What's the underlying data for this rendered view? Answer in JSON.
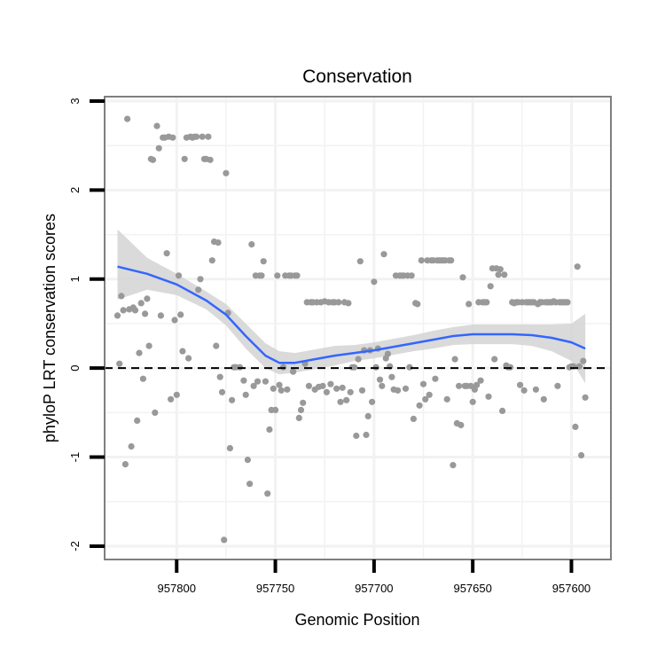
{
  "chart_data": {
    "type": "scatter",
    "title": "Conservation",
    "xlabel": "Genomic Position",
    "ylabel": "phyloP LRT conservation scores",
    "x_reversed": true,
    "xlim": [
      957836.5,
      957580.0
    ],
    "ylim": [
      -2.15,
      3.05
    ],
    "x_ticks": [
      957800,
      957750,
      957700,
      957650,
      957600
    ],
    "x_tick_labels": [
      "957800",
      "957750",
      "957700",
      "957650",
      "957600"
    ],
    "y_ticks": [
      -2,
      -1,
      0,
      1,
      2,
      3
    ],
    "y_tick_labels": [
      "-2",
      "-1",
      "0",
      "1",
      "2",
      "3"
    ],
    "grid": true,
    "reference_line": {
      "y": 0,
      "style": "dashed",
      "color": "#000000"
    },
    "colors": {
      "points": "#999999",
      "smooth": "#3366ff",
      "band": "#d3d3d3",
      "grid": "#f2f2f2",
      "frame": "#7f7f7f"
    },
    "series": [
      {
        "name": "scores",
        "kind": "points",
        "points": [
          [
            957830,
            0.59
          ],
          [
            957829,
            0.05
          ],
          [
            957828,
            0.81
          ],
          [
            957827,
            0.65
          ],
          [
            957826,
            -1.08
          ],
          [
            957825,
            2.8
          ],
          [
            957824,
            0.66
          ],
          [
            957823,
            -0.88
          ],
          [
            957822,
            0.68
          ],
          [
            957821,
            0.65
          ],
          [
            957820,
            -0.59
          ],
          [
            957819,
            0.17
          ],
          [
            957818,
            0.73
          ],
          [
            957817,
            -0.12
          ],
          [
            957816,
            0.61
          ],
          [
            957815,
            0.78
          ],
          [
            957814,
            0.25
          ],
          [
            957813,
            2.35
          ],
          [
            957812,
            2.34
          ],
          [
            957811,
            -0.5
          ],
          [
            957810,
            2.72
          ],
          [
            957809,
            2.47
          ],
          [
            957808,
            0.59
          ],
          [
            957807,
            2.59
          ],
          [
            957806,
            2.59
          ],
          [
            957805,
            1.29
          ],
          [
            957804,
            2.6
          ],
          [
            957803,
            -0.35
          ],
          [
            957802,
            2.59
          ],
          [
            957801,
            0.54
          ],
          [
            957800,
            -0.3
          ],
          [
            957799,
            1.04
          ],
          [
            957798,
            0.6
          ],
          [
            957797,
            0.19
          ],
          [
            957796,
            2.35
          ],
          [
            957795,
            2.59
          ],
          [
            957794,
            0.11
          ],
          [
            957793,
            2.6
          ],
          [
            957792,
            2.59
          ],
          [
            957791,
            2.6
          ],
          [
            957790,
            2.6
          ],
          [
            957789,
            0.88
          ],
          [
            957788,
            1.0
          ],
          [
            957787,
            2.6
          ],
          [
            957786,
            2.35
          ],
          [
            957785,
            2.35
          ],
          [
            957784,
            2.6
          ],
          [
            957783,
            2.34
          ],
          [
            957782,
            1.21
          ],
          [
            957781,
            1.42
          ],
          [
            957780,
            0.25
          ],
          [
            957779,
            1.41
          ],
          [
            957778,
            -0.1
          ],
          [
            957777,
            -0.27
          ],
          [
            957776,
            -1.93
          ],
          [
            957775,
            2.19
          ],
          [
            957774,
            0.62
          ],
          [
            957773,
            -0.9
          ],
          [
            957772,
            -0.36
          ],
          [
            957771,
            0.01
          ],
          [
            957770,
            0.01
          ],
          [
            957768,
            0.01
          ],
          [
            957766,
            -0.14
          ],
          [
            957765,
            -0.3
          ],
          [
            957764,
            -1.03
          ],
          [
            957763,
            -1.3
          ],
          [
            957762,
            1.39
          ],
          [
            957761,
            -0.2
          ],
          [
            957760,
            1.04
          ],
          [
            957759,
            -0.15
          ],
          [
            957758,
            1.04
          ],
          [
            957757,
            1.04
          ],
          [
            957756,
            1.2
          ],
          [
            957755,
            -0.15
          ],
          [
            957754,
            -1.41
          ],
          [
            957753,
            -0.69
          ],
          [
            957752,
            -0.47
          ],
          [
            957751,
            -0.23
          ],
          [
            957750,
            -0.47
          ],
          [
            957749,
            1.04
          ],
          [
            957748,
            -0.19
          ],
          [
            957747,
            -0.25
          ],
          [
            957746,
            0.01
          ],
          [
            957745,
            1.04
          ],
          [
            957744,
            -0.24
          ],
          [
            957743,
            1.04
          ],
          [
            957742,
            1.04
          ],
          [
            957741,
            -0.04
          ],
          [
            957740,
            1.04
          ],
          [
            957739,
            1.04
          ],
          [
            957738,
            -0.56
          ],
          [
            957737,
            -0.47
          ],
          [
            957736,
            -0.39
          ],
          [
            957735,
            0.05
          ],
          [
            957734,
            0.74
          ],
          [
            957733,
            -0.2
          ],
          [
            957732,
            0.74
          ],
          [
            957731,
            0.74
          ],
          [
            957730,
            -0.24
          ],
          [
            957729,
            0.74
          ],
          [
            957728,
            -0.21
          ],
          [
            957727,
            0.74
          ],
          [
            957726,
            -0.2
          ],
          [
            957725,
            0.75
          ],
          [
            957724,
            -0.27
          ],
          [
            957723,
            0.74
          ],
          [
            957722,
            -0.18
          ],
          [
            957721,
            0.74
          ],
          [
            957720,
            0.74
          ],
          [
            957719,
            -0.23
          ],
          [
            957718,
            0.74
          ],
          [
            957717,
            -0.38
          ],
          [
            957716,
            -0.22
          ],
          [
            957715,
            0.74
          ],
          [
            957714,
            -0.36
          ],
          [
            957713,
            0.73
          ],
          [
            957712,
            -0.27
          ],
          [
            957711,
            0.01
          ],
          [
            957710,
            0.01
          ],
          [
            957709,
            -0.76
          ],
          [
            957708,
            0.1
          ],
          [
            957707,
            1.2
          ],
          [
            957706,
            -0.25
          ],
          [
            957705,
            0.2
          ],
          [
            957704,
            -0.75
          ],
          [
            957703,
            -0.54
          ],
          [
            957702,
            0.2
          ],
          [
            957701,
            -0.38
          ],
          [
            957700,
            0.97
          ],
          [
            957699,
            0.01
          ],
          [
            957698,
            0.22
          ],
          [
            957697,
            -0.13
          ],
          [
            957696,
            -0.2
          ],
          [
            957695,
            1.28
          ],
          [
            957694,
            0.11
          ],
          [
            957693,
            0.16
          ],
          [
            957692,
            0.02
          ],
          [
            957691,
            -0.1
          ],
          [
            957690,
            -0.24
          ],
          [
            957689,
            1.04
          ],
          [
            957688,
            -0.25
          ],
          [
            957687,
            1.04
          ],
          [
            957686,
            1.04
          ],
          [
            957685,
            1.04
          ],
          [
            957684,
            -0.23
          ],
          [
            957683,
            1.04
          ],
          [
            957682,
            0.01
          ],
          [
            957681,
            1.04
          ],
          [
            957680,
            -0.57
          ],
          [
            957679,
            0.73
          ],
          [
            957678,
            0.72
          ],
          [
            957677,
            -0.42
          ],
          [
            957676,
            1.21
          ],
          [
            957675,
            -0.18
          ],
          [
            957674,
            -0.35
          ],
          [
            957673,
            1.21
          ],
          [
            957672,
            -0.3
          ],
          [
            957671,
            1.21
          ],
          [
            957670,
            1.21
          ],
          [
            957669,
            -0.12
          ],
          [
            957668,
            1.21
          ],
          [
            957667,
            1.21
          ],
          [
            957666,
            1.21
          ],
          [
            957665,
            1.21
          ],
          [
            957664,
            1.21
          ],
          [
            957663,
            -0.35
          ],
          [
            957662,
            1.21
          ],
          [
            957661,
            1.21
          ],
          [
            957660,
            -1.09
          ],
          [
            957659,
            0.1
          ],
          [
            957658,
            -0.62
          ],
          [
            957657,
            -0.2
          ],
          [
            957656,
            -0.64
          ],
          [
            957655,
            1.02
          ],
          [
            957654,
            -0.2
          ],
          [
            957653,
            -0.2
          ],
          [
            957652,
            0.72
          ],
          [
            957651,
            -0.2
          ],
          [
            957650,
            -0.38
          ],
          [
            957649,
            -0.24
          ],
          [
            957648,
            -0.19
          ],
          [
            957647,
            0.74
          ],
          [
            957646,
            -0.14
          ],
          [
            957645,
            0.74
          ],
          [
            957644,
            0.74
          ],
          [
            957643,
            0.74
          ],
          [
            957642,
            -0.32
          ],
          [
            957641,
            0.92
          ],
          [
            957640,
            1.12
          ],
          [
            957639,
            0.1
          ],
          [
            957638,
            1.12
          ],
          [
            957637,
            1.05
          ],
          [
            957636,
            1.11
          ],
          [
            957635,
            -0.48
          ],
          [
            957634,
            1.05
          ],
          [
            957633,
            0.03
          ],
          [
            957632,
            0.01
          ],
          [
            957631,
            0.01
          ],
          [
            957630,
            0.74
          ],
          [
            957629,
            0.73
          ],
          [
            957628,
            0.74
          ],
          [
            957627,
            0.74
          ],
          [
            957626,
            -0.19
          ],
          [
            957625,
            0.74
          ],
          [
            957624,
            -0.25
          ],
          [
            957623,
            0.74
          ],
          [
            957622,
            0.74
          ],
          [
            957621,
            0.74
          ],
          [
            957620,
            0.74
          ],
          [
            957619,
            0.74
          ],
          [
            957618,
            -0.24
          ],
          [
            957617,
            0.72
          ],
          [
            957616,
            0.74
          ],
          [
            957615,
            0.74
          ],
          [
            957614,
            -0.35
          ],
          [
            957613,
            0.74
          ],
          [
            957612,
            0.74
          ],
          [
            957611,
            0.74
          ],
          [
            957610,
            0.74
          ],
          [
            957609,
            0.75
          ],
          [
            957608,
            0.74
          ],
          [
            957607,
            -0.2
          ],
          [
            957606,
            0.74
          ],
          [
            957605,
            0.74
          ],
          [
            957604,
            0.74
          ],
          [
            957603,
            0.74
          ],
          [
            957602,
            0.74
          ],
          [
            957601,
            0.01
          ],
          [
            957600,
            0.02
          ],
          [
            957599,
            0.02
          ],
          [
            957598,
            -0.66
          ],
          [
            957597,
            1.14
          ],
          [
            957596,
            0.02
          ],
          [
            957595,
            -0.98
          ],
          [
            957594,
            0.08
          ],
          [
            957593,
            -0.33
          ]
        ]
      },
      {
        "name": "loess smooth",
        "kind": "line",
        "points": [
          [
            957830,
            1.14
          ],
          [
            957815,
            1.06
          ],
          [
            957800,
            0.94
          ],
          [
            957785,
            0.76
          ],
          [
            957775,
            0.6
          ],
          [
            957765,
            0.36
          ],
          [
            957755,
            0.14
          ],
          [
            957748,
            0.06
          ],
          [
            957740,
            0.06
          ],
          [
            957730,
            0.1
          ],
          [
            957720,
            0.14
          ],
          [
            957710,
            0.17
          ],
          [
            957700,
            0.2
          ],
          [
            957690,
            0.24
          ],
          [
            957680,
            0.28
          ],
          [
            957670,
            0.32
          ],
          [
            957660,
            0.36
          ],
          [
            957650,
            0.38
          ],
          [
            957640,
            0.38
          ],
          [
            957630,
            0.38
          ],
          [
            957620,
            0.37
          ],
          [
            957610,
            0.34
          ],
          [
            957600,
            0.29
          ],
          [
            957593,
            0.22
          ]
        ],
        "lower": [
          0.77,
          0.88,
          0.82,
          0.66,
          0.48,
          0.22,
          0.0,
          -0.07,
          -0.05,
          -0.01,
          0.03,
          0.08,
          0.11,
          0.15,
          0.19,
          0.22,
          0.26,
          0.27,
          0.27,
          0.27,
          0.25,
          0.19,
          0.08,
          -0.17
        ],
        "upper": [
          1.56,
          1.24,
          1.06,
          0.86,
          0.72,
          0.5,
          0.28,
          0.19,
          0.17,
          0.21,
          0.25,
          0.26,
          0.29,
          0.33,
          0.37,
          0.42,
          0.46,
          0.49,
          0.49,
          0.49,
          0.49,
          0.49,
          0.5,
          0.61
        ]
      }
    ]
  }
}
